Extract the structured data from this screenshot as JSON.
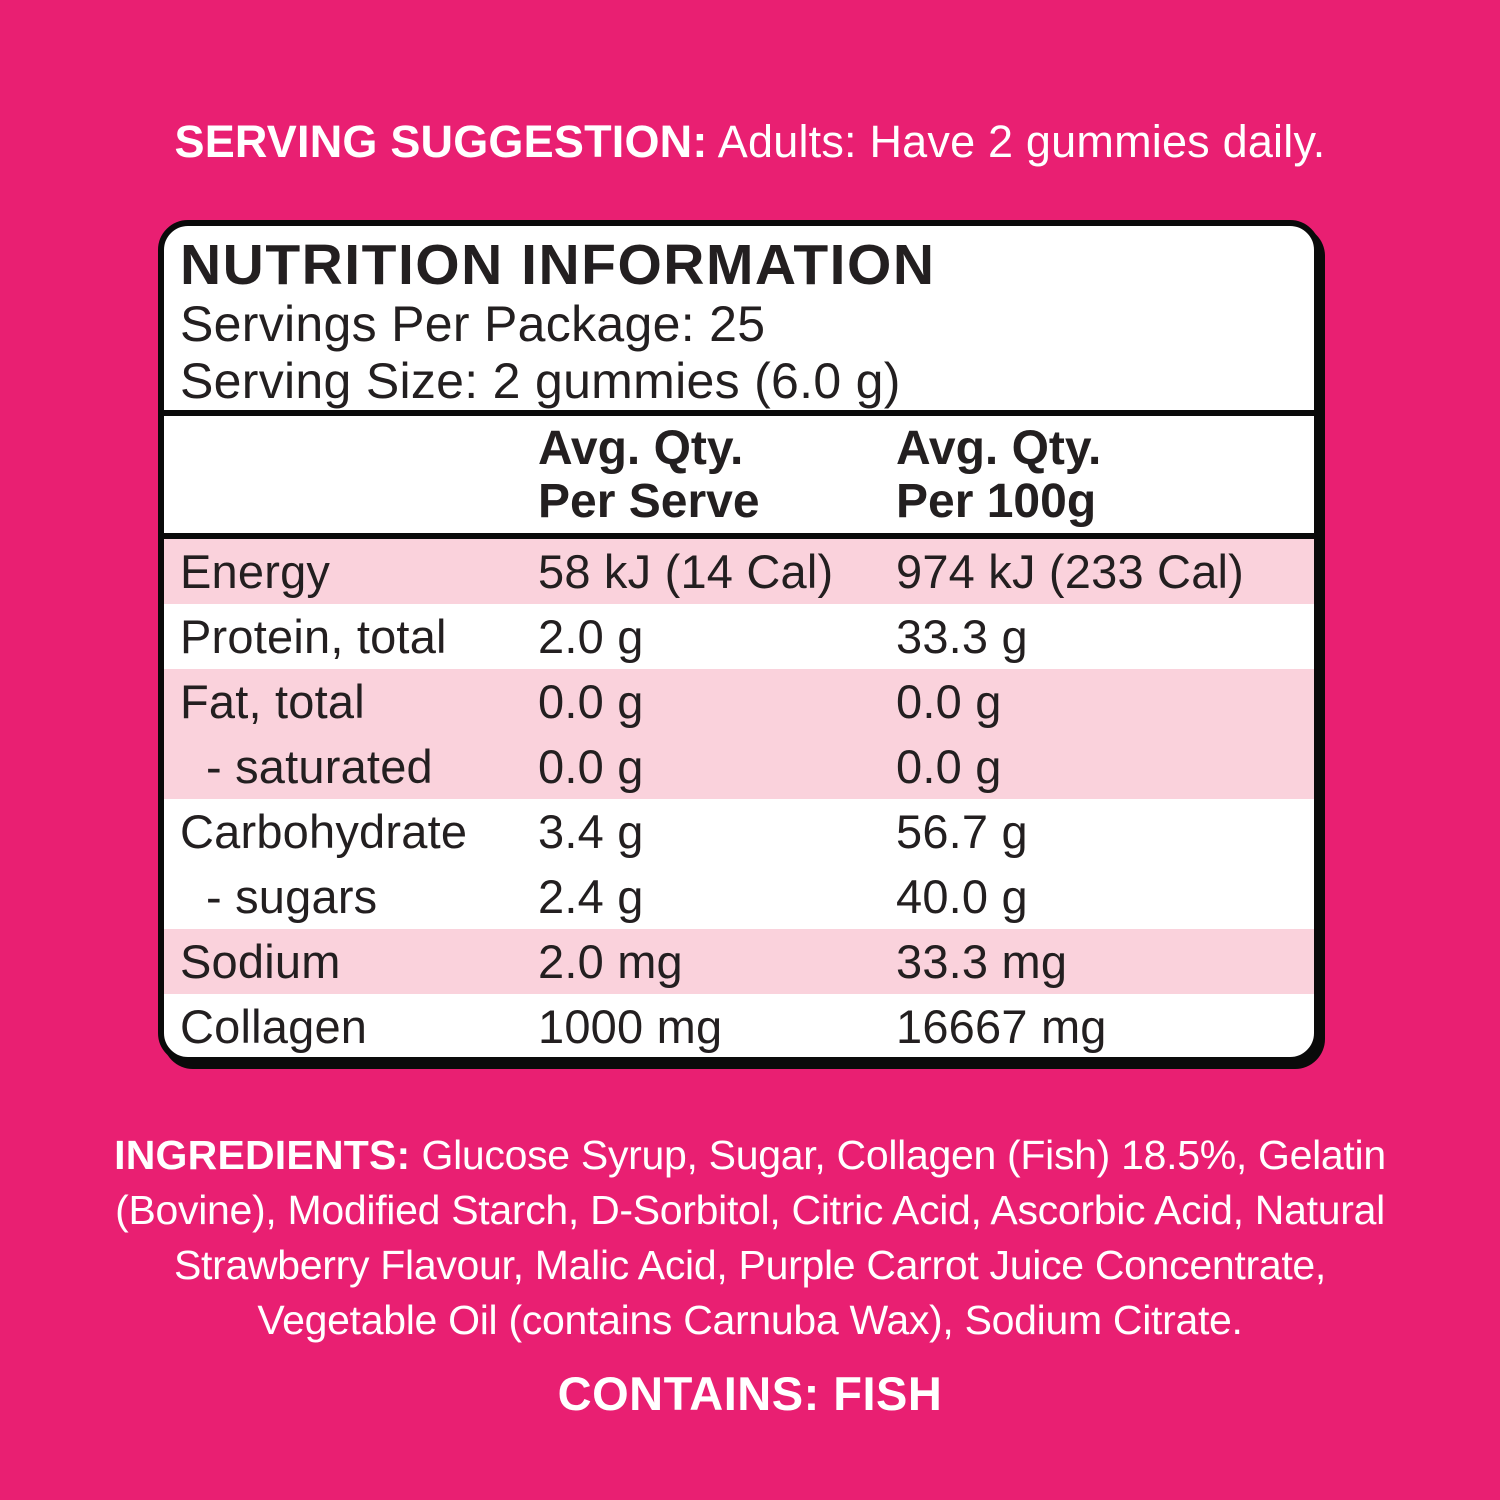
{
  "colors": {
    "background": "#e91f72",
    "row_stripe": "#fad2dc",
    "panel_background": "#ffffff",
    "panel_border": "#0a0a0a",
    "panel_text": "#231f20",
    "outer_text": "#ffffff"
  },
  "serving_suggestion": {
    "label": "SERVING SUGGESTION:",
    "text": "Adults: Have 2 gummies daily."
  },
  "nutrition_panel": {
    "title": "NUTRITION INFORMATION",
    "servings_per_package": "Servings Per Package: 25",
    "serving_size": "Serving Size: 2 gummies (6.0 g)",
    "columns": {
      "per_serve_line1": "Avg. Qty.",
      "per_serve_line2": "Per Serve",
      "per_100g_line1": "Avg. Qty.",
      "per_100g_line2": "Per 100g"
    },
    "rows": [
      {
        "name": "Energy",
        "per_serve": "58 kJ (14 Cal)",
        "per_100g": "974 kJ (233 Cal)",
        "striped": true,
        "indent": false
      },
      {
        "name": "Protein, total",
        "per_serve": "2.0 g",
        "per_100g": "33.3 g",
        "striped": false,
        "indent": false
      },
      {
        "name": "Fat, total",
        "per_serve": "0.0 g",
        "per_100g": "0.0 g",
        "striped": true,
        "indent": false
      },
      {
        "name": "- saturated",
        "per_serve": "0.0 g",
        "per_100g": "0.0 g",
        "striped": true,
        "indent": true
      },
      {
        "name": "Carbohydrate",
        "per_serve": "3.4 g",
        "per_100g": "56.7 g",
        "striped": false,
        "indent": false
      },
      {
        "name": "- sugars",
        "per_serve": "2.4 g",
        "per_100g": "40.0 g",
        "striped": false,
        "indent": true
      },
      {
        "name": "Sodium",
        "per_serve": "2.0 mg",
        "per_100g": "33.3 mg",
        "striped": true,
        "indent": false
      },
      {
        "name": "Collagen",
        "per_serve": "1000 mg",
        "per_100g": "16667 mg",
        "striped": false,
        "indent": false
      }
    ]
  },
  "ingredients": {
    "label": "INGREDIENTS:",
    "full_text": "Glucose Syrup, Sugar, Collagen (Fish) 18.5%, Gelatin (Bovine), Modified Starch, D-Sorbitol, Citric Acid, Ascorbic Acid, Natural Strawberry Flavour, Malic Acid, Purple Carrot Juice Concentrate, Vegetable Oil (contains Carnuba Wax), Sodium Citrate.",
    "lines": [
      "Glucose Syrup, Sugar, Collagen (Fish) 18.5%, Gelatin",
      "(Bovine), Modified Starch, D-Sorbitol, Citric Acid, Ascorbic Acid, Natural",
      "Strawberry Flavour, Malic Acid, Purple Carrot Juice Concentrate,",
      "Vegetable Oil (contains Carnuba Wax), Sodium Citrate."
    ]
  },
  "contains_statement": "CONTAINS: FISH"
}
